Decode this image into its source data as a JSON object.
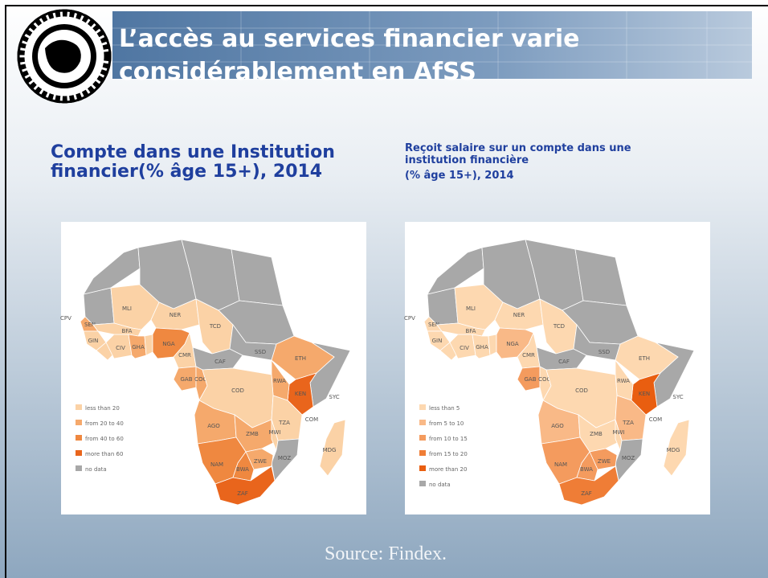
{
  "header": {
    "title_lines": [
      "L’accès au services financier varie",
      "considérablement en AfSS"
    ]
  },
  "maps": [
    {
      "title_lines": [
        "Compte dans une Institution",
        "financier(% âge 15+), 2014"
      ],
      "legend": [
        {
          "label": "less than 20",
          "color": "#fbd2a6"
        },
        {
          "label": "from 20 to 40",
          "color": "#f5a96c"
        },
        {
          "label": "from 40 to 60",
          "color": "#ef8840"
        },
        {
          "label": "more than 60",
          "color": "#e9651c"
        },
        {
          "label": "no data",
          "color": "#a8a8a8"
        }
      ],
      "countries": [
        {
          "color": "#a8a8a8"
        },
        {
          "color": "#a8a8a8"
        },
        {
          "color": "#a8a8a8"
        },
        {
          "color": "#a8a8a8"
        },
        {
          "color": "#a8a8a8"
        },
        {
          "color": "#a8a8a8"
        },
        {
          "color": "#a8a8a8"
        },
        {
          "label": "MLI",
          "color": "#fbd2a6"
        },
        {
          "label": "NER",
          "color": "#fbd2a6"
        },
        {
          "label": "TCD",
          "color": "#fbd2a6"
        },
        {
          "label": "SEN",
          "color": "#f5a96c"
        },
        {
          "label": "GIN",
          "color": "#fbd2a6"
        },
        {
          "color": "#fbd2a6"
        },
        {
          "label": "CIV",
          "color": "#fbd2a6"
        },
        {
          "label": "BFA",
          "color": "#fbd2a6"
        },
        {
          "label": "GHA",
          "color": "#f5a96c"
        },
        {
          "color": "#fbd2a6"
        },
        {
          "label": "NGA",
          "color": "#ef8840"
        },
        {
          "label": "CMR",
          "color": "#fbd2a6"
        },
        {
          "label": "CAF",
          "color": "#a8a8a8"
        },
        {
          "label": "SSD",
          "color": "#a8a8a8"
        },
        {
          "label": "ETH",
          "color": "#f5a96c"
        },
        {
          "label": "KEN",
          "color": "#e9651c"
        },
        {
          "label": "RWA",
          "color": "#f5a96c"
        },
        {
          "label": "GAB",
          "color": "#f5a96c"
        },
        {
          "label": "COG",
          "color": "#f5a96c"
        },
        {
          "label": "COD",
          "color": "#fbd2a6"
        },
        {
          "label": "TZA",
          "color": "#fbd2a6"
        },
        {
          "label": "AGO",
          "color": "#f5a96c"
        },
        {
          "label": "ZMB",
          "color": "#f5a96c"
        },
        {
          "label": "MWI",
          "color": "#fbd2a6"
        },
        {
          "label": "MOZ",
          "color": "#a8a8a8"
        },
        {
          "label": "ZWE",
          "color": "#f5a96c"
        },
        {
          "label": "NAM",
          "color": "#ef8840"
        },
        {
          "label": "BWA",
          "color": "#ef8840"
        },
        {
          "label": "ZAF",
          "color": "#e9651c"
        },
        {
          "label": "MDG",
          "color": "#fbd2a6"
        },
        {
          "label": "SYC"
        },
        {
          "label": "COM"
        },
        {
          "label": "CPV"
        }
      ]
    },
    {
      "title_lines": [
        "Reçoit salaire sur un compte dans une",
        "institution financière",
        " (% âge 15+), 2014"
      ],
      "legend": [
        {
          "label": "less than 5",
          "color": "#fdd8b0"
        },
        {
          "label": "from 5 to 10",
          "color": "#f9b987"
        },
        {
          "label": "from 10 to 15",
          "color": "#f49b5e"
        },
        {
          "label": "from 15 to 20",
          "color": "#ef7d36"
        },
        {
          "label": "more than 20",
          "color": "#e95e10"
        },
        {
          "label": "no data",
          "color": "#a8a8a8"
        }
      ],
      "countries": [
        {
          "color": "#a8a8a8"
        },
        {
          "color": "#a8a8a8"
        },
        {
          "color": "#a8a8a8"
        },
        {
          "color": "#a8a8a8"
        },
        {
          "color": "#a8a8a8"
        },
        {
          "color": "#a8a8a8"
        },
        {
          "color": "#a8a8a8"
        },
        {
          "label": "MLI",
          "color": "#fdd8b0"
        },
        {
          "label": "NER",
          "color": "#fdd8b0"
        },
        {
          "label": "TCD",
          "color": "#fdd8b0"
        },
        {
          "label": "SEN",
          "color": "#fdd8b0"
        },
        {
          "label": "GIN",
          "color": "#fdd8b0"
        },
        {
          "color": "#fdd8b0"
        },
        {
          "label": "CIV",
          "color": "#fdd8b0"
        },
        {
          "label": "BFA",
          "color": "#fdd8b0"
        },
        {
          "label": "GHA",
          "color": "#fdd8b0"
        },
        {
          "color": "#fdd8b0"
        },
        {
          "label": "NGA",
          "color": "#f9b987"
        },
        {
          "label": "CMR",
          "color": "#fdd8b0"
        },
        {
          "label": "CAF",
          "color": "#a8a8a8"
        },
        {
          "label": "SSD",
          "color": "#a8a8a8"
        },
        {
          "label": "ETH",
          "color": "#fdd8b0"
        },
        {
          "label": "KEN",
          "color": "#e95e10"
        },
        {
          "label": "RWA",
          "color": "#fdd8b0"
        },
        {
          "label": "GAB",
          "color": "#f49b5e"
        },
        {
          "label": "COG",
          "color": "#fdd8b0"
        },
        {
          "label": "COD",
          "color": "#fdd8b0"
        },
        {
          "label": "TZA",
          "color": "#f9b987"
        },
        {
          "label": "AGO",
          "color": "#f9b987"
        },
        {
          "label": "ZMB",
          "color": "#fdd8b0"
        },
        {
          "label": "MWI",
          "color": "#fdd8b0"
        },
        {
          "label": "MOZ",
          "color": "#a8a8a8"
        },
        {
          "label": "ZWE",
          "color": "#f49b5e"
        },
        {
          "label": "NAM",
          "color": "#f49b5e"
        },
        {
          "label": "BWA",
          "color": "#f49b5e"
        },
        {
          "label": "ZAF",
          "color": "#ef7d36"
        },
        {
          "label": "MDG",
          "color": "#fdd8b0"
        },
        {
          "label": "SYC"
        },
        {
          "label": "COM"
        },
        {
          "label": "CPV"
        }
      ]
    }
  ],
  "source": "Source: Findex."
}
